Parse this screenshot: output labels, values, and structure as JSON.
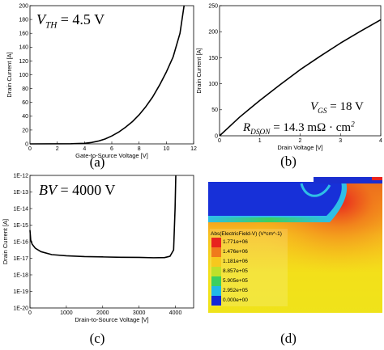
{
  "chart_data": [
    {
      "id": "a",
      "type": "line",
      "caption": "(a)",
      "xlabel": "Gate-to-Source Voltage [V]",
      "ylabel": "Drain Current [A]",
      "xlim": [
        0,
        12
      ],
      "ylim": [
        0,
        200
      ],
      "xticks": [
        0,
        2,
        4,
        6,
        8,
        10,
        12
      ],
      "yticks": [
        0,
        20,
        40,
        60,
        80,
        100,
        120,
        140,
        160,
        180,
        200
      ],
      "annotation": {
        "main": "V",
        "sub": "TH",
        "rest": " = 4.5 V"
      },
      "series": [
        {
          "x": [
            0,
            3,
            4,
            4.5,
            5,
            5.5,
            6,
            6.5,
            7,
            7.5,
            8,
            8.5,
            9,
            9.5,
            10,
            10.5,
            11,
            11.3
          ],
          "y": [
            0,
            0.2,
            0.8,
            2,
            4,
            7,
            11.5,
            17,
            24,
            32,
            42,
            54,
            68,
            85,
            104,
            126,
            160,
            200
          ]
        }
      ]
    },
    {
      "id": "b",
      "type": "line",
      "caption": "(b)",
      "xlabel": "Drain Voltage [V]",
      "ylabel": "Drain Current [A]",
      "xlim": [
        0,
        4
      ],
      "ylim": [
        0,
        250
      ],
      "xticks": [
        0,
        1,
        2,
        3,
        4
      ],
      "yticks": [
        0,
        50,
        100,
        150,
        200,
        250
      ],
      "annotation1": {
        "main": "V",
        "sub": "GS",
        "rest": " = 18 V"
      },
      "annotation2": {
        "main": "R",
        "sub": "DSON",
        "rest": " = 14.3 mΩ · cm",
        "sup": "2"
      },
      "series": [
        {
          "x": [
            0,
            0.25,
            0.5,
            0.75,
            1,
            1.5,
            2,
            2.5,
            3,
            3.5,
            4
          ],
          "y": [
            0,
            18,
            36,
            52,
            68,
            98,
            127,
            153,
            178,
            201,
            223
          ]
        }
      ]
    },
    {
      "id": "c",
      "type": "line",
      "caption": "(c)",
      "xlabel": "Drain-to-Source Voltage [V]",
      "ylabel": "Drain Current [A]",
      "xlim": [
        0,
        4500
      ],
      "ylim_log10": [
        -20,
        -12
      ],
      "yscale": "log",
      "xticks": [
        0,
        1000,
        2000,
        3000,
        4000
      ],
      "yticks": [
        "1E-12",
        "1E-13",
        "1E-14",
        "1E-15",
        "1E-16",
        "1E-17",
        "1E-18",
        "1E-19",
        "1E-20"
      ],
      "annotation": {
        "main": "BV",
        "rest": " = 4000 V"
      },
      "series": [
        {
          "x": [
            0,
            20,
            60,
            150,
            300,
            600,
            1000,
            1500,
            2000,
            2500,
            3000,
            3400,
            3700,
            3850,
            3950,
            3990,
            4010
          ],
          "y_log10": [
            -15.3,
            -15.9,
            -16.15,
            -16.4,
            -16.6,
            -16.78,
            -16.85,
            -16.9,
            -16.92,
            -16.94,
            -16.95,
            -16.97,
            -16.96,
            -16.88,
            -16.5,
            -14,
            -12
          ]
        }
      ]
    },
    {
      "id": "d",
      "type": "heatmap",
      "caption": "(d)",
      "legend_title": "Abs(ElectricField-V) (V*cm^-1)",
      "legend_values": [
        "1.771e+06",
        "1.476e+06",
        "1.181e+06",
        "8.857e+05",
        "5.905e+05",
        "2.952e+05",
        "0.000e+00"
      ],
      "colors": [
        "#e8231e",
        "#f07a1c",
        "#f7c81e",
        "#bfe02a",
        "#3ccf60",
        "#21b8e8",
        "#1226d6"
      ]
    }
  ]
}
